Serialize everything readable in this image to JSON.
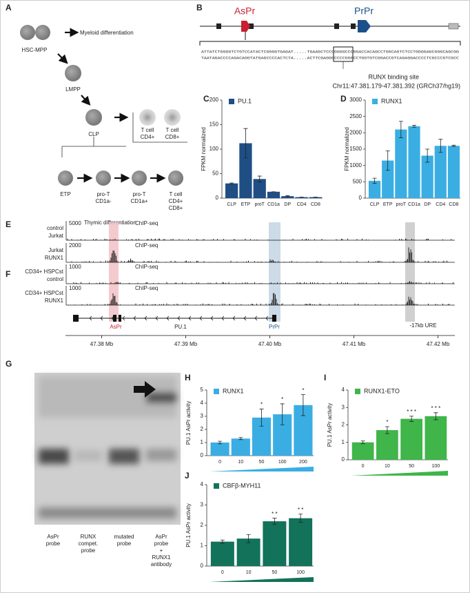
{
  "letters": [
    "A",
    "B",
    "C",
    "D",
    "E",
    "F",
    "G",
    "H",
    "I",
    "J"
  ],
  "panel_a": {
    "hsc": "HSC-MPP",
    "myeloid": "Myeloid differentiation",
    "lmpp": "LMPP",
    "clp": "CLP",
    "tcell_cd4": [
      "T cell",
      "CD4+"
    ],
    "tcell_cd8": [
      "T cell",
      "CD8+"
    ],
    "etp": "ETP",
    "prot_minus": [
      "pro-T",
      "CD1a-"
    ],
    "prot_plus": [
      "pro-T",
      "CD1a+"
    ],
    "tcell_dp": [
      "T cell",
      "CD4+",
      "CD8+"
    ],
    "thymic": "Thymic differentiation"
  },
  "panel_b": {
    "aspr": "AsPr",
    "prpr": "PrPr",
    "seq_top": "ATTATCTGGGGTCTGTCCATACTCGGGGTGAGAT.....TGAAGCTCCCGGGGCCCGGACCACAGCCTGGCAGTCTCCTGGGGAGCGGGCAGCGG",
    "seq_bottom": "TAATAGACCCCAGACAGGTATGAGCCCCACTCTA.....ACTTCGAGGGCCCCGGGCCTGGTGTCGGACCGTCAGAGGACCCCTCGCCCGTCGCC",
    "site": "RUNX binding site",
    "coords": "Chr11:47.381.179-47.381.392 (GRCh37/hg19)"
  },
  "panel_e": {
    "tracks": [
      {
        "name": [
          "control",
          "Jurkat"
        ],
        "scale": 5000,
        "assay": "ChIP-seq"
      },
      {
        "name": [
          "Jurkat",
          "RUNX1"
        ],
        "scale": 2000,
        "assay": "ChIP-seq"
      },
      {
        "name": [
          "CD34+ HSPCst",
          "control"
        ],
        "scale": 1000,
        "assay": "ChIP-seq"
      },
      {
        "name": [
          "CD34+ HSPCst",
          "RUNX1"
        ],
        "scale": 1000,
        "assay": "ChIP-seq"
      }
    ],
    "genes": {
      "aspr": "AsPr",
      "pu1": "PU.1",
      "prpr": "PrPr",
      "ure": "-17kb URE"
    },
    "xlim": [
      47.3757,
      47.422
    ],
    "xticks": [
      {
        "value": 47.38,
        "label": "47.38 Mb"
      },
      {
        "value": 47.39,
        "label": "47.39 Mb"
      },
      {
        "value": 47.4,
        "label": "47.40 Mb"
      },
      {
        "value": 47.41,
        "label": "47.41 Mb"
      },
      {
        "value": 47.42,
        "label": "47.42 Mb"
      }
    ]
  },
  "panel_g": {
    "lanes": [
      [
        "AsPr",
        "probe"
      ],
      [
        "RUNX",
        "compet.",
        "probe"
      ],
      [
        "mutated",
        "probe"
      ],
      [
        "AsPr",
        "probe",
        "+",
        "RUNX1",
        "antibody"
      ]
    ]
  },
  "chart_data": [
    {
      "type": "bar",
      "ylabel": "FPKM normalized",
      "categories": [
        "CLP",
        "ETP",
        "proT",
        "CD1a",
        "DP",
        "CD4",
        "CD8"
      ],
      "series": [
        {
          "name": "PU.1",
          "color": "#1f4e85",
          "values": [
            30,
            112,
            39,
            13,
            4,
            2,
            2
          ],
          "errors": [
            1,
            30,
            6,
            0,
            1,
            0,
            0
          ]
        }
      ],
      "ylim": [
        0,
        200
      ],
      "yticks": [
        0,
        50,
        100,
        150,
        200
      ],
      "wedge": false
    },
    {
      "type": "bar",
      "ylabel": "FPKM normalized",
      "categories": [
        "CLP",
        "ETP",
        "proT",
        "CD1a",
        "DP",
        "CD4",
        "CD8"
      ],
      "series": [
        {
          "name": "RUNX1",
          "color": "#3aaee3",
          "values": [
            530,
            1150,
            2100,
            2200,
            1300,
            1600,
            1600
          ],
          "errors": [
            80,
            300,
            250,
            30,
            200,
            200,
            20
          ]
        }
      ],
      "ylim": [
        0,
        3000
      ],
      "yticks": [
        0,
        500,
        1000,
        1500,
        2000,
        2500,
        3000
      ],
      "wedge": false
    },
    {
      "type": "bar",
      "ylabel": "PU.1 AsPr activity",
      "categories": [
        "0",
        "10",
        "50",
        "100",
        "200"
      ],
      "series": [
        {
          "name": "RUNX1",
          "color": "#3aaee3",
          "values": [
            1.0,
            1.3,
            2.9,
            3.15,
            3.85
          ],
          "errors": [
            0.1,
            0.08,
            0.65,
            0.8,
            0.8
          ]
        }
      ],
      "stars": [
        null,
        null,
        "*",
        "*",
        "*"
      ],
      "ylim": [
        0,
        5
      ],
      "yticks": [
        0,
        1,
        2,
        3,
        4,
        5
      ],
      "wedge": true
    },
    {
      "type": "bar",
      "ylabel": "PU.1 AsPr activity",
      "categories": [
        "0",
        "10",
        "50",
        "100"
      ],
      "series": [
        {
          "name": "RUNX1-ETO",
          "color": "#3fb54a",
          "values": [
            1.0,
            1.7,
            2.35,
            2.5
          ],
          "errors": [
            0.08,
            0.2,
            0.15,
            0.2
          ]
        }
      ],
      "stars": [
        null,
        "*",
        "* * *",
        "* * *"
      ],
      "ylim": [
        0,
        4
      ],
      "yticks": [
        0,
        1,
        2,
        3,
        4
      ],
      "wedge": true
    },
    {
      "type": "bar",
      "ylabel": "PU.1 AsPr activity",
      "categories": [
        "0",
        "10",
        "50",
        "100"
      ],
      "series": [
        {
          "name": "CBFβ-MYH11",
          "color": "#12725a",
          "values": [
            1.2,
            1.35,
            2.2,
            2.35
          ],
          "errors": [
            0.08,
            0.2,
            0.15,
            0.2
          ]
        }
      ],
      "stars": [
        null,
        null,
        "* *",
        "* *"
      ],
      "ylim": [
        0,
        4
      ],
      "yticks": [
        0,
        1,
        2,
        3,
        4
      ],
      "wedge": true
    }
  ]
}
